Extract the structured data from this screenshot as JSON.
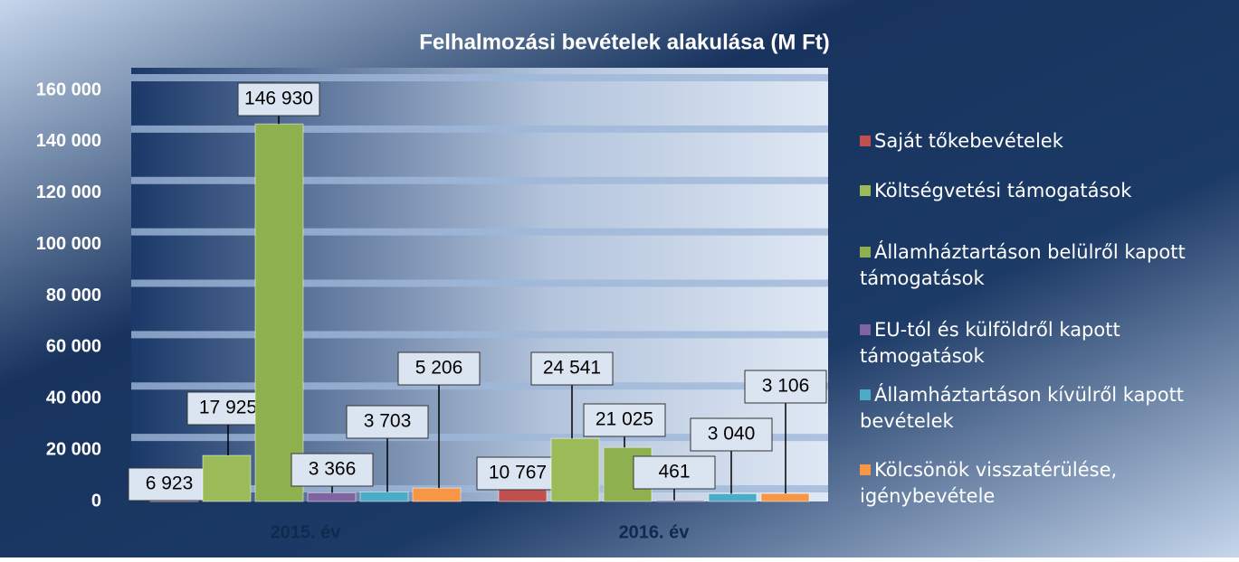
{
  "chart_data": {
    "type": "bar",
    "title": "Felhalmozási bevételek alakulása (M Ft)",
    "categories": [
      "2015. év",
      "2016. év"
    ],
    "series": [
      {
        "name": "Saját tőkebevételek",
        "color": "#c0504d",
        "values": [
          6923,
          10767
        ],
        "value_labels": [
          "6 923",
          "10 767"
        ]
      },
      {
        "name": "Költségvetési támogatások",
        "color": "#9bbb59",
        "values": [
          17925,
          24541
        ],
        "value_labels": [
          "17 925",
          "24 541"
        ]
      },
      {
        "name": "Államháztartáson belülről kapott támogatások",
        "color": "#8fb04e",
        "values": [
          146930,
          21025
        ],
        "value_labels": [
          "146 930",
          "21 025"
        ]
      },
      {
        "name": "EU-tól és külföldről kapott támogatások",
        "color": "#8064a2",
        "values": [
          3366,
          461
        ],
        "value_labels": [
          "3 366",
          "461"
        ]
      },
      {
        "name": "Államháztartáson kívülről kapott bevételek",
        "color": "#4bacc6",
        "values": [
          3703,
          3040
        ],
        "value_labels": [
          "3 703",
          "3 040"
        ]
      },
      {
        "name": "Kölcsönök visszatérülése, igénybevétele",
        "color": "#f79646",
        "values": [
          5206,
          3106
        ],
        "value_labels": [
          "5 206",
          "3 106"
        ]
      }
    ],
    "ylim": [
      0,
      160000
    ],
    "yticks": [
      0,
      {
        "value": 20000,
        "label": "20 000"
      },
      {
        "value": 40000,
        "label": "40 000"
      },
      {
        "value": 60000,
        "label": "60 000"
      },
      {
        "value": 80000,
        "label": "80 000"
      },
      {
        "value": 100000,
        "label": "100 000"
      },
      {
        "value": 120000,
        "label": "120 000"
      },
      {
        "value": 140000,
        "label": "140 000"
      },
      {
        "value": 160000,
        "label": "160 000"
      }
    ],
    "grid": true,
    "legend": "right"
  }
}
